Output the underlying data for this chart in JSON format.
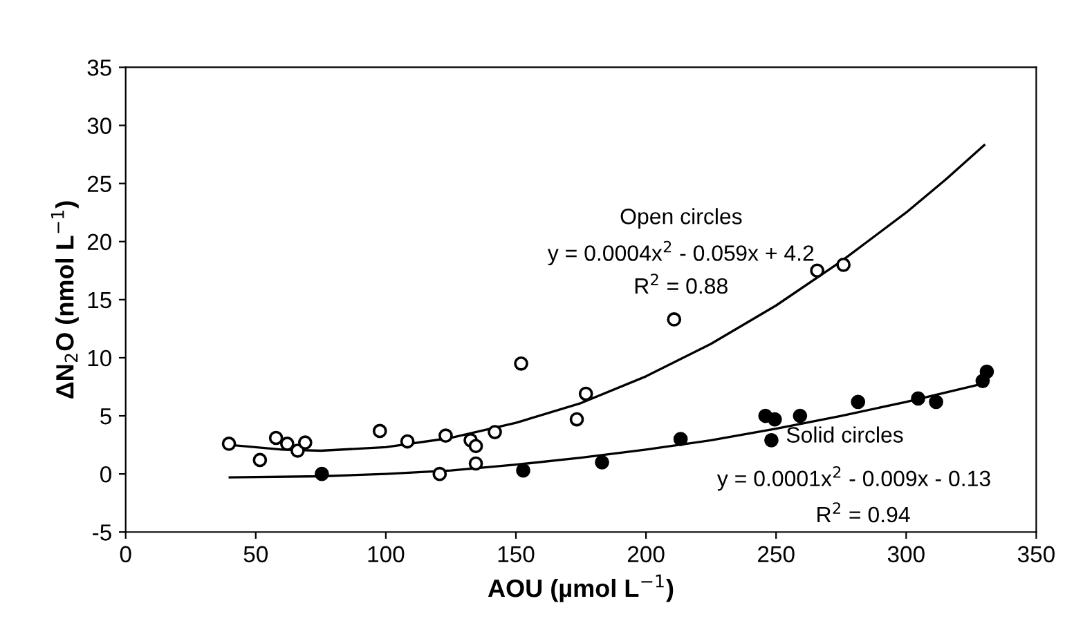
{
  "chart_data": {
    "type": "scatter",
    "xlabel": "AOU (µmol L$^{−1}$)",
    "ylabel": "ΔN$_{2}$O (nmol L$^{−1}$)",
    "xlim": [
      0,
      350
    ],
    "ylim": [
      -5,
      35
    ],
    "xticks": [
      0,
      50,
      100,
      150,
      200,
      250,
      300,
      350
    ],
    "yticks": [
      -5,
      0,
      5,
      10,
      15,
      20,
      25,
      30,
      35
    ],
    "grid": false,
    "legend": false,
    "series": [
      {
        "marker": "circle",
        "color": "#ffffff",
        "x": [
          39.7,
          51.6,
          57.8,
          62.1,
          66.1,
          69,
          97.7,
          108.3,
          120.7,
          123,
          132.6,
          134.6,
          134.6,
          141.9,
          152,
          173.4,
          176.9,
          210.8,
          265.8,
          275.9
        ],
        "values": [
          2.6,
          1.2,
          3.1,
          2.6,
          2.0,
          2.7,
          3.7,
          2.8,
          0.0,
          3.3,
          2.9,
          2.4,
          0.9,
          3.6,
          9.5,
          4.7,
          6.9,
          13.3,
          17.5,
          18.0
        ]
      },
      {
        "marker": "circle",
        "color": "#000000",
        "x": [
          75.4,
          152.8,
          183.1,
          213.3,
          245.9,
          248.2,
          249.5,
          259.2,
          281.5,
          304.6,
          311.5,
          329.4,
          331
        ],
        "values": [
          0.0,
          0.3,
          1.0,
          3.0,
          5.0,
          2.9,
          4.7,
          5.0,
          6.2,
          6.5,
          6.2,
          8.0,
          8.8
        ]
      },
      {
        "type": "line",
        "color": "#000000",
        "x": [
          40,
          60,
          75,
          100,
          125,
          150,
          175,
          200,
          225,
          250,
          275,
          300,
          315,
          330
        ],
        "values": [
          2.5,
          2.1,
          2.0,
          2.3,
          3.1,
          4.4,
          6.1,
          8.4,
          11.2,
          14.5,
          18.3,
          22.5,
          25.3,
          28.3
        ]
      },
      {
        "type": "line",
        "color": "#000000",
        "x": [
          40,
          75,
          100,
          125,
          150,
          175,
          200,
          225,
          250,
          275,
          300,
          330
        ],
        "values": [
          -0.3,
          -0.2,
          0.0,
          0.3,
          0.8,
          1.4,
          2.1,
          2.9,
          3.9,
          5.0,
          6.2,
          7.8
        ]
      }
    ],
    "annotations": [
      "Open circles",
      "y = 0.0004x$^{2}$ - 0.059x + 4.2",
      "R$^{2}$ = 0.88",
      "Solid circles",
      "y = 0.0001x$^{2}$ - 0.009x - 0.13",
      "R$^{2}$ = 0.94"
    ]
  }
}
